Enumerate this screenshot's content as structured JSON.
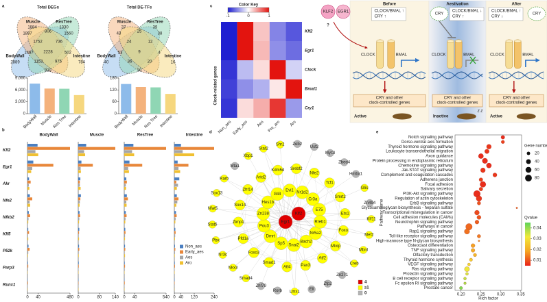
{
  "panels": {
    "a": {
      "label": "a",
      "colors": [
        "#8dbbea",
        "#f4b27c",
        "#8fd6b4",
        "#f6d77e"
      ],
      "venn_degs": {
        "title": "Total DEGs",
        "sets": [
          "BodyWall",
          "Muscle",
          "ResTree",
          "Intestine"
        ],
        "set_counts": [
          2889,
          1884,
          1330,
          784
        ],
        "region_counts": [
          1897,
          806,
          1560,
          1752,
          736,
          2228,
          1467,
          502,
          1153,
          975,
          833
        ]
      },
      "venn_tfs": {
        "title": "Total DE-TFs",
        "sets": [
          "BodyWall",
          "Muscle",
          "ResTree",
          "Intestine"
        ],
        "set_counts": [
          40,
          37,
          39,
          16
        ],
        "region_counts": [
          43,
          25,
          38,
          24,
          12,
          9,
          53,
          4,
          36,
          20,
          30
        ]
      },
      "bar_degs": {
        "categories": [
          "BodyWall",
          "Muscle",
          "Res Tree",
          "Intestine"
        ],
        "values": [
          7600,
          6350,
          6300,
          4700
        ],
        "ylim": [
          0,
          9000
        ],
        "yticks": [
          0,
          {
            "value": 3000,
            "label": "3,000"
          },
          {
            "value": 6000,
            "label": "6,000"
          },
          {
            "value": 9000,
            "label": "9,000"
          }
        ]
      },
      "bar_tfs": {
        "categories": [
          "BodyWall",
          "Muscle",
          "Res Tree",
          "Intestine"
        ],
        "values": [
          150,
          135,
          133,
          100
        ],
        "ylim": [
          0,
          180
        ],
        "yticks": [
          0,
          60,
          120,
          180
        ]
      }
    },
    "b": {
      "label": "b",
      "genes": [
        "Klf2",
        "Egr1",
        "Akr",
        "Nfe2",
        "Nfkb2",
        "Klf5",
        "P52k",
        "Parp3",
        "Runx1"
      ],
      "groups": [
        {
          "name": "Non_aes",
          "color": "#4a7fc1"
        },
        {
          "name": "Early_aes",
          "color": "#e8873a"
        },
        {
          "name": "Aes",
          "color": "#a5a5a5"
        },
        {
          "name": "Aro",
          "color": "#f0c031"
        }
      ],
      "tissues": [
        {
          "title": "BodyWall",
          "xlim": [
            0,
            480
          ],
          "xticks": [
            0,
            40,
            480
          ],
          "axis_break": 40,
          "series": [
            [
              38,
              22,
              6,
              9,
              5,
              3,
              4,
              2,
              1
            ],
            [
              480,
              250,
              12,
              18,
              10,
              6,
              8,
              3,
              2
            ],
            [
              30,
              18,
              5,
              8,
              4,
              2,
              3,
              2,
              1
            ],
            [
              42,
              14,
              7,
              10,
              3,
              3,
              2,
              1,
              1
            ]
          ]
        },
        {
          "title": "Muscle",
          "xlim": [
            0,
            140
          ],
          "xticks": [
            0,
            80,
            140
          ],
          "series": [
            [
              30,
              12,
              8,
              10,
              5,
              4,
              3,
              2,
              1
            ],
            [
              140,
              55,
              6,
              8,
              7,
              3,
              4,
              2,
              1
            ],
            [
              22,
              9,
              6,
              6,
              4,
              2,
              2,
              1,
              1
            ],
            [
              26,
              10,
              9,
              5,
              3,
              3,
              2,
              1,
              1
            ]
          ]
        },
        {
          "title": "ResTree",
          "xlim": [
            0,
            540
          ],
          "xticks": [
            0,
            40,
            540
          ],
          "axis_break": 40,
          "series": [
            [
              35,
              20,
              8,
              10,
              6,
              4,
              3,
              2,
              1
            ],
            [
              540,
              160,
              10,
              14,
              9,
              5,
              4,
              3,
              2
            ],
            [
              30,
              15,
              6,
              8,
              5,
              3,
              2,
              2,
              1
            ],
            [
              38,
              18,
              7,
              9,
              4,
              3,
              3,
              1,
              1
            ]
          ]
        },
        {
          "title": "Intestine",
          "xlim": [
            0,
            240
          ],
          "xticks": [
            0,
            40,
            120,
            240
          ],
          "series": [
            [
              40,
              20,
              30,
              15,
              10,
              6,
              4,
              3,
              2
            ],
            [
              240,
              85,
              12,
              25,
              14,
              8,
              6,
              4,
              2
            ],
            [
              50,
              25,
              22,
              18,
              8,
              5,
              4,
              2,
              1
            ],
            [
              120,
              35,
              15,
              12,
              6,
              4,
              3,
              2,
              1
            ]
          ]
        }
      ]
    },
    "c": {
      "label": "c",
      "heatmap": {
        "key_title": "Color Key",
        "key_ticks": [
          -1,
          0,
          1
        ],
        "clim": [
          -1,
          1
        ],
        "colors": [
          "#1f1fd1",
          "#ffffff",
          "#e3140f"
        ],
        "row_title": "Clock-related genes",
        "rows": [
          "Klf2",
          "Egr1",
          "Clock",
          "Bmal1",
          "Cry1"
        ],
        "columns": [
          "Non_aes",
          "Early_aes",
          "Aes",
          "Pre_aro",
          "Aro"
        ],
        "values": [
          [
            -1,
            1,
            0.25,
            -0.55,
            -0.75
          ],
          [
            -1,
            1,
            0.3,
            -0.5,
            -0.65
          ],
          [
            -0.9,
            -0.3,
            0.15,
            1,
            -0.2
          ],
          [
            -0.85,
            -0.5,
            -0.35,
            0.1,
            1
          ],
          [
            -0.9,
            0.15,
            0.35,
            0.85,
            -0.45
          ]
        ]
      },
      "diagram": {
        "tfs": [
          "KLF2",
          "EGR1"
        ],
        "question": "?",
        "clock": "CLOCK",
        "bmal": "BMAL",
        "cry": "CRY",
        "sleep": "z z",
        "output": [
          "CRY and other",
          "clock-controlled genes"
        ],
        "stages": [
          {
            "title": "Before",
            "status": [
              "CLOCK/BMAL ↑",
              "CRY ↑"
            ],
            "state": "Active"
          },
          {
            "title": "Aestivation",
            "status": [
              "CLOCK/BMAL ↓",
              "CRY ↑"
            ],
            "state": "Inactive"
          },
          {
            "title": "After",
            "status": [
              "CLOCK/BMAL ↑",
              "CRY ↓"
            ],
            "state": "Active"
          }
        ]
      }
    },
    "d": {
      "label": "d",
      "legend": [
        {
          "label": "4",
          "color": "#e00000"
        },
        {
          "label": "≥1",
          "color": "#ffff00"
        },
        {
          "label": "0",
          "color": "#b4b4b4"
        }
      ],
      "nodes": [
        {
          "label": "Egr1",
          "group": 0
        },
        {
          "label": "Klf2",
          "group": 0
        },
        {
          "label": "Nr5a2",
          "group": 1
        },
        {
          "label": "Bach2",
          "group": 1
        },
        {
          "label": "Snai2",
          "group": 1
        },
        {
          "label": "Sp5",
          "group": 1
        },
        {
          "label": "Dmrt",
          "group": 1
        },
        {
          "label": "Pou3",
          "group": 1
        },
        {
          "label": "Zn238",
          "group": 1
        },
        {
          "label": "Hes1b",
          "group": 1
        },
        {
          "label": "Gli3",
          "group": 1
        },
        {
          "label": "Evi1",
          "group": 1
        },
        {
          "label": "Nr1d2",
          "group": 1
        },
        {
          "label": "Cr3a",
          "group": 1
        },
        {
          "label": "E75",
          "group": 1
        },
        {
          "label": "Rreb1",
          "group": 1
        },
        {
          "label": "Srebf2",
          "group": 1
        },
        {
          "label": "Nfe2",
          "group": 1
        },
        {
          "label": "Tcf1",
          "group": 1
        },
        {
          "label": "Smrt2",
          "group": 1
        },
        {
          "label": "Ets1",
          "group": 1
        },
        {
          "label": "Foxo",
          "group": 1
        },
        {
          "label": "Mlxip",
          "group": 1
        },
        {
          "label": "Atf2",
          "group": 1
        },
        {
          "label": "Pax3",
          "group": 1
        },
        {
          "label": "Atf4",
          "group": 1
        },
        {
          "label": "Smad1",
          "group": 1
        },
        {
          "label": "Foxo3",
          "group": 1
        },
        {
          "label": "Pfd1a",
          "group": 1
        },
        {
          "label": "Zimp1",
          "group": 1
        },
        {
          "label": "Sox14",
          "group": 1
        },
        {
          "label": "Zhf14",
          "group": 1
        },
        {
          "label": "Arid2",
          "group": 1
        },
        {
          "label": "Kdm5d",
          "group": 1
        },
        {
          "label": "Mta1",
          "group": 2
        },
        {
          "label": "Xbp1",
          "group": 1
        },
        {
          "label": "Stat2",
          "group": 1
        },
        {
          "label": "Shr2",
          "group": 1
        },
        {
          "label": "Zeb2",
          "group": 2
        },
        {
          "label": "Usf2",
          "group": 2
        },
        {
          "label": "Myt1l",
          "group": 2
        },
        {
          "label": "Zbed4",
          "group": 2
        },
        {
          "label": "Hmbx1",
          "group": 2
        },
        {
          "label": "Glis",
          "group": 1
        },
        {
          "label": "Zn494",
          "group": 2
        },
        {
          "label": "Klf11",
          "group": 1
        },
        {
          "label": "Mef2",
          "group": 1
        },
        {
          "label": "Mbnl",
          "group": 1
        },
        {
          "label": "Creb",
          "group": 1
        },
        {
          "label": "Zn271",
          "group": 2
        },
        {
          "label": "Zfp2",
          "group": 2
        },
        {
          "label": "Ell",
          "group": 2
        },
        {
          "label": "Lmx1",
          "group": 1
        },
        {
          "label": "Rorb",
          "group": 2
        },
        {
          "label": "Zhf79",
          "group": 2
        },
        {
          "label": "Smad4",
          "group": 1
        },
        {
          "label": "Nkx3",
          "group": 1
        },
        {
          "label": "Nr3c",
          "group": 1
        },
        {
          "label": "Pbx",
          "group": 1
        },
        {
          "label": "Stat5",
          "group": 1
        },
        {
          "label": "Nfat5",
          "group": 1
        },
        {
          "label": "Sox13",
          "group": 1
        },
        {
          "label": "Rarb",
          "group": 1
        }
      ]
    },
    "e": {
      "label": "e",
      "ylabel": "Pathway name",
      "xlabel": "Rich factor",
      "xlim": [
        0.185,
        0.352
      ],
      "xticks": [
        {
          "value": 0.2,
          "label": "0.20"
        },
        0.25,
        {
          "value": 0.3,
          "label": "0.30"
        },
        0.35
      ],
      "size_title": "Gene number",
      "size_ticks": [
        20,
        40,
        60,
        80
      ],
      "color_title": "Qvalue",
      "qlim": [
        0.005,
        0.045
      ],
      "qticks": [
        0.01,
        0.02,
        0.03,
        0.04
      ],
      "qcolors": [
        "#e8231a",
        "#f5a623",
        "#f2e93a",
        "#5ed35a"
      ],
      "pathways": [
        "Notch signaling pathway",
        "Dorso-ventral axis formation",
        "Thyroid hormone signaling pathway",
        "Leukocyte transendothelial migration",
        "Axon guidance",
        "Protein processing in endoplasmic reticulum",
        "Chemokine signaling pathway",
        "Jak-STAT signaling pathway",
        "Complement and coagulation cascades",
        "Adherens junction",
        "Focal adhesion",
        "Salivary secretion",
        "PI3K-Akt signaling pathway",
        "Regulation of actin cytoskeleton",
        "ErbB signaling pathway",
        "Glycosaminoglycan biosynthesis - heparan sulfate",
        "Transcriptional misregulation in cancer",
        "Cell adhesion molecules (CAMs)",
        "Neurotrophin signaling pathway",
        "Pathways in cancer",
        "Rap1 signaling pathway",
        "Toll-like receptor signaling pathway",
        "High-mannose type N-glycan biosynthesis",
        "Osteoclast differentiation",
        "TNF signaling pathway",
        "Olfactory transduction",
        "Thyroid hormone synthesis",
        "VEGF signaling pathway",
        "Ras signaling pathway",
        "Prolactin signaling pathway",
        "B cell receptor signaling pathway",
        "Fc epsilon RI signaling pathway",
        "Prostate cancer"
      ],
      "rich_factor": [
        0.305,
        0.305,
        0.27,
        0.265,
        0.25,
        0.26,
        0.27,
        0.255,
        0.285,
        0.25,
        0.255,
        0.25,
        0.24,
        0.245,
        0.245,
        0.34,
        0.24,
        0.245,
        0.24,
        0.22,
        0.215,
        0.245,
        0.245,
        0.23,
        0.23,
        0.235,
        0.225,
        0.22,
        0.215,
        0.215,
        0.21,
        0.21,
        0.2
      ],
      "gene_number": [
        25,
        20,
        40,
        35,
        45,
        50,
        45,
        40,
        30,
        25,
        60,
        25,
        80,
        55,
        22,
        5,
        40,
        30,
        28,
        75,
        50,
        22,
        5,
        28,
        26,
        20,
        18,
        15,
        45,
        15,
        15,
        12,
        18
      ],
      "qvalue": [
        0.006,
        0.008,
        0.007,
        0.007,
        0.006,
        0.006,
        0.006,
        0.007,
        0.007,
        0.008,
        0.006,
        0.008,
        0.006,
        0.007,
        0.01,
        0.012,
        0.009,
        0.01,
        0.011,
        0.012,
        0.013,
        0.014,
        0.016,
        0.018,
        0.02,
        0.022,
        0.026,
        0.028,
        0.032,
        0.034,
        0.036,
        0.038,
        0.042
      ]
    }
  }
}
